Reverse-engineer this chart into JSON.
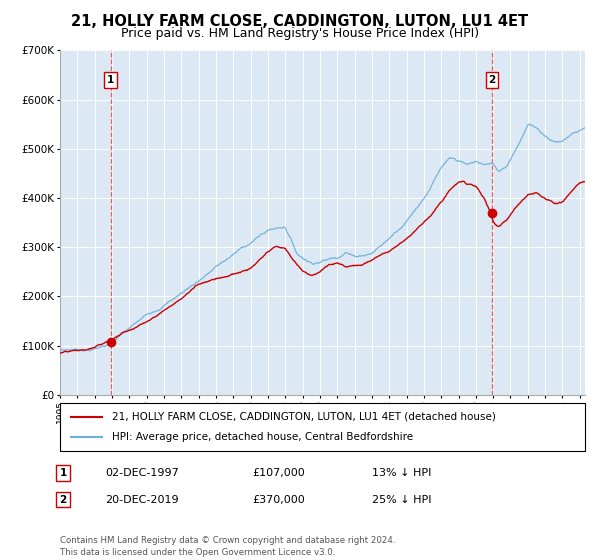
{
  "title": "21, HOLLY FARM CLOSE, CADDINGTON, LUTON, LU1 4ET",
  "subtitle": "Price paid vs. HM Land Registry's House Price Index (HPI)",
  "red_label": "21, HOLLY FARM CLOSE, CADDINGTON, LUTON, LU1 4ET (detached house)",
  "blue_label": "HPI: Average price, detached house, Central Bedfordshire",
  "footnote": "Contains HM Land Registry data © Crown copyright and database right 2024.\nThis data is licensed under the Open Government Licence v3.0.",
  "point1_date": "02-DEC-1997",
  "point1_price": 107000,
  "point1_price_str": "£107,000",
  "point1_hpi_pct": "13% ↓ HPI",
  "point2_date": "20-DEC-2019",
  "point2_price": 370000,
  "point2_price_str": "£370,000",
  "point2_hpi_pct": "25% ↓ HPI",
  "ylim": [
    0,
    700000
  ],
  "plot_bg": "#dce9f5",
  "red_color": "#cc0000",
  "blue_color": "#6baed6",
  "dashed_color": "#e06060",
  "grid_color": "#ffffff",
  "title_fontsize": 10.5,
  "subtitle_fontsize": 9,
  "start_year": 1995.0,
  "end_year": 2025.3,
  "year1": 1997.92,
  "year2": 2019.92
}
